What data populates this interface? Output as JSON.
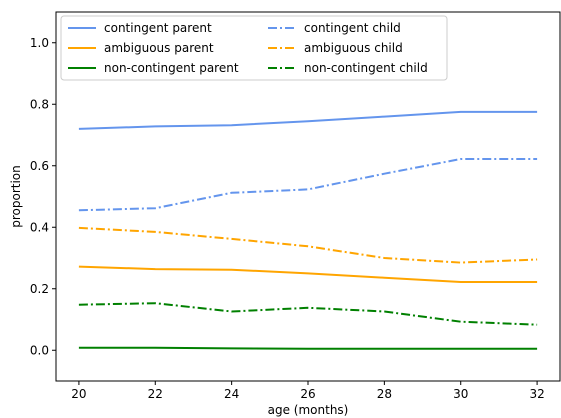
{
  "chart_data": {
    "type": "line",
    "title": "",
    "xlabel": "age (months)",
    "ylabel": "proportion",
    "x": [
      20,
      22,
      24,
      26,
      28,
      30,
      32
    ],
    "xlim": [
      19.4,
      32.6
    ],
    "ylim": [
      -0.1,
      1.1
    ],
    "xticks": [
      "20",
      "22",
      "24",
      "26",
      "28",
      "30",
      "32"
    ],
    "yticks": [
      "0.0",
      "0.2",
      "0.4",
      "0.6",
      "0.8",
      "1.0"
    ],
    "grid": false,
    "legend_position": "top-left",
    "legend_columns": 2,
    "series": [
      {
        "name": "contingent parent",
        "color": "#6495ED",
        "style": "solid",
        "values": [
          0.72,
          0.728,
          0.732,
          0.745,
          0.76,
          0.775,
          0.775
        ]
      },
      {
        "name": "ambiguous parent",
        "color": "#FFA500",
        "style": "solid",
        "values": [
          0.272,
          0.264,
          0.262,
          0.25,
          0.236,
          0.222,
          0.222
        ]
      },
      {
        "name": "non-contingent parent",
        "color": "#008000",
        "style": "solid",
        "values": [
          0.008,
          0.008,
          0.006,
          0.005,
          0.005,
          0.005,
          0.005
        ]
      },
      {
        "name": "contingent child",
        "color": "#6495ED",
        "style": "dashdot",
        "values": [
          0.455,
          0.462,
          0.512,
          0.523,
          0.574,
          0.622,
          0.622
        ]
      },
      {
        "name": "ambiguous child",
        "color": "#FFA500",
        "style": "dashdot",
        "values": [
          0.398,
          0.385,
          0.362,
          0.338,
          0.3,
          0.285,
          0.295
        ]
      },
      {
        "name": "non-contingent child",
        "color": "#008000",
        "style": "dashdot",
        "values": [
          0.148,
          0.153,
          0.126,
          0.138,
          0.126,
          0.093,
          0.083
        ]
      }
    ]
  }
}
